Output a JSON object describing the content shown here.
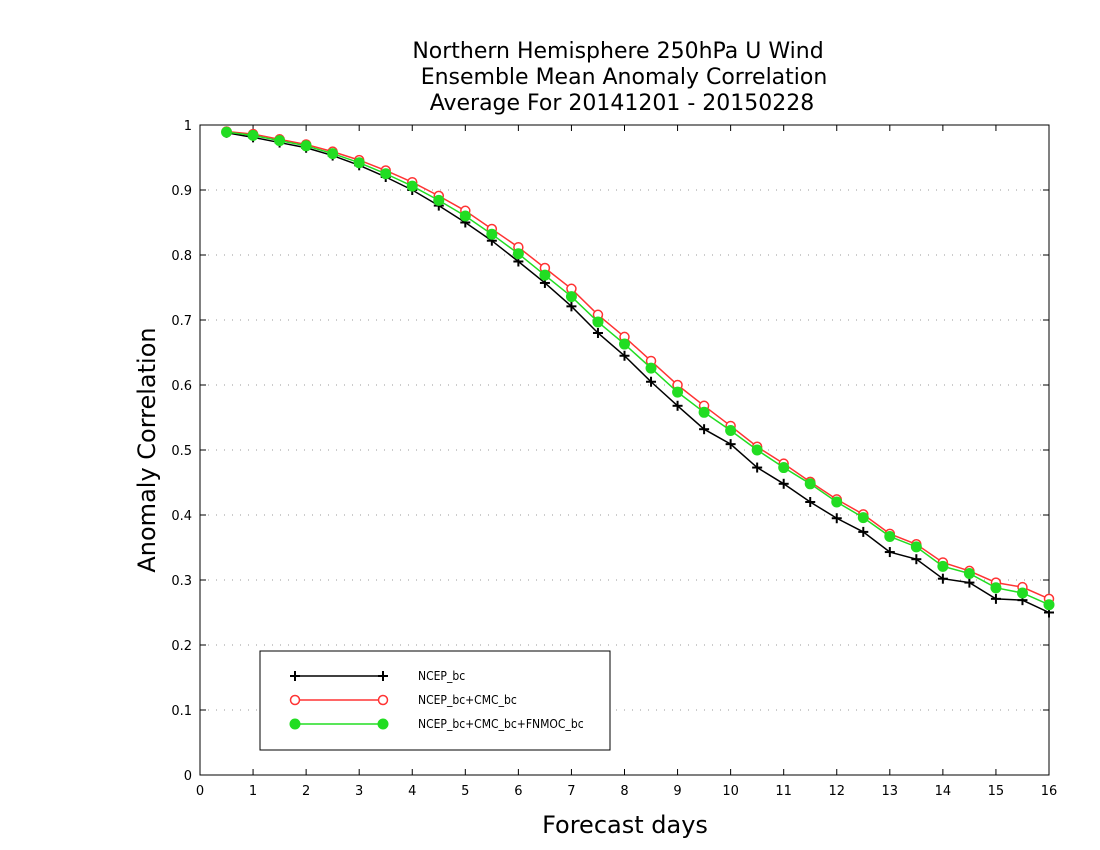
{
  "chart_data": {
    "type": "line",
    "title_lines": [
      "Northern Hemisphere 250hPa U Wind",
      "Ensemble Mean Anomaly Correlation",
      "Average For 20141201 - 20150228"
    ],
    "xlabel": "Forecast days",
    "ylabel": "Anomaly Correlation",
    "xlim": [
      0,
      16
    ],
    "ylim": [
      0,
      1
    ],
    "x_ticks": [
      0,
      1,
      2,
      3,
      4,
      5,
      6,
      7,
      8,
      9,
      10,
      11,
      12,
      13,
      14,
      15,
      16
    ],
    "x_tick_labels": [
      "0",
      "1",
      "2",
      "3",
      "4",
      "5",
      "6",
      "7",
      "8",
      "9",
      "10",
      "11",
      "12",
      "13",
      "14",
      "15",
      "16"
    ],
    "y_ticks": [
      0,
      0.1,
      0.2,
      0.3,
      0.4,
      0.5,
      0.6,
      0.7,
      0.8,
      0.9,
      1
    ],
    "y_tick_labels": [
      "0",
      "0.1",
      "0.2",
      "0.3",
      "0.4",
      "0.5",
      "0.6",
      "0.7",
      "0.8",
      "0.9",
      "1"
    ],
    "grid": "horizontal dotted",
    "legend_position": "bottom-left",
    "x": [
      0.5,
      1,
      1.5,
      2,
      2.5,
      3,
      3.5,
      4,
      4.5,
      5,
      5.5,
      6,
      6.5,
      7,
      7.5,
      8,
      8.5,
      9,
      9.5,
      10,
      10.5,
      11,
      11.5,
      12,
      12.5,
      13,
      13.5,
      14,
      14.5,
      15,
      15.5,
      16
    ],
    "series": [
      {
        "name": "NCEP_bc",
        "color": "#000000",
        "marker": "plus",
        "values": [
          0.988,
          0.981,
          0.973,
          0.965,
          0.953,
          0.938,
          0.92,
          0.9,
          0.876,
          0.85,
          0.822,
          0.79,
          0.757,
          0.721,
          0.68,
          0.645,
          0.605,
          0.568,
          0.532,
          0.509,
          0.473,
          0.448,
          0.42,
          0.395,
          0.374,
          0.343,
          0.332,
          0.302,
          0.296,
          0.271,
          0.269,
          0.25
        ]
      },
      {
        "name": "NCEP_bc+CMC_bc",
        "color": "#ff3333",
        "marker": "open-circle",
        "values": [
          0.99,
          0.986,
          0.978,
          0.97,
          0.959,
          0.946,
          0.93,
          0.912,
          0.891,
          0.868,
          0.84,
          0.812,
          0.78,
          0.748,
          0.708,
          0.674,
          0.637,
          0.6,
          0.568,
          0.537,
          0.505,
          0.479,
          0.451,
          0.424,
          0.401,
          0.371,
          0.355,
          0.327,
          0.314,
          0.296,
          0.289,
          0.271
        ]
      },
      {
        "name": "NCEP_bc+CMC_bc+FNMOC_bc",
        "color": "#22dd22",
        "marker": "filled-circle",
        "values": [
          0.989,
          0.984,
          0.976,
          0.968,
          0.956,
          0.942,
          0.925,
          0.906,
          0.884,
          0.86,
          0.832,
          0.802,
          0.769,
          0.736,
          0.697,
          0.663,
          0.626,
          0.589,
          0.558,
          0.53,
          0.5,
          0.473,
          0.448,
          0.42,
          0.396,
          0.367,
          0.351,
          0.321,
          0.31,
          0.288,
          0.28,
          0.262
        ]
      }
    ]
  }
}
